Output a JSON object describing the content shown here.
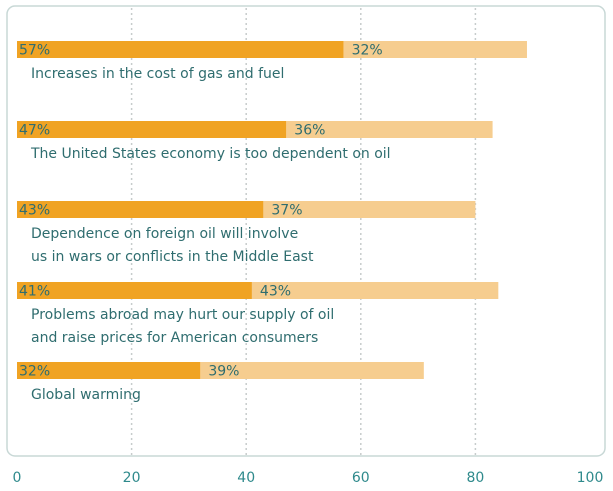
{
  "chart_data": {
    "type": "stacked_barh",
    "categories": [
      [
        "Increases in the cost of gas and fuel"
      ],
      [
        "The United States economy is too dependent on oil"
      ],
      [
        "Dependence on foreign oil will involve",
        "us in wars or conflicts in the Middle East"
      ],
      [
        "Problems abroad may hurt our supply of oil",
        "and raise prices for American consumers"
      ],
      [
        "Global warming"
      ]
    ],
    "series": [
      {
        "color": "#f0a323",
        "values": [
          57,
          47,
          43,
          41,
          32
        ],
        "value_labels": [
          "57%",
          "47%",
          "43%",
          "41%",
          "32%"
        ]
      },
      {
        "color": "#f6cd8f",
        "values": [
          32,
          36,
          37,
          43,
          39
        ],
        "value_labels": [
          "32%",
          "36%",
          "37%",
          "43%",
          "39%"
        ]
      }
    ],
    "xlim": [
      0,
      100
    ],
    "xticks": [
      0,
      20,
      40,
      60,
      80,
      100
    ],
    "grid": true
  }
}
